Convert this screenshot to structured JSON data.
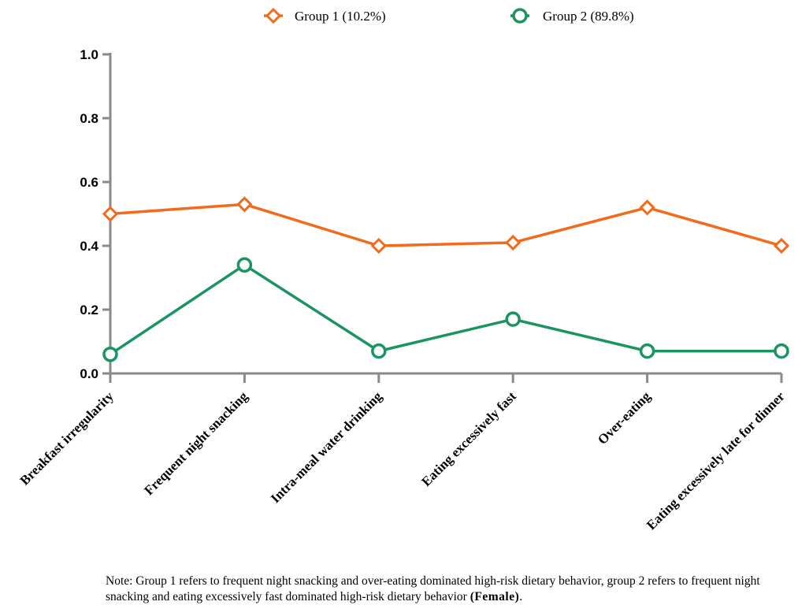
{
  "chart_data": {
    "type": "line",
    "categories": [
      "Breakfast irregularity",
      "Frequent night snacking",
      "Intra-meal water drinking",
      "Eating excessively fast",
      "Over-eating",
      "Eating excessively late for dinner"
    ],
    "series": [
      {
        "name": "Group 1  (10.2%)",
        "color": "#F26A1B",
        "marker": "diamond",
        "values": [
          0.5,
          0.53,
          0.4,
          0.41,
          0.52,
          0.4
        ]
      },
      {
        "name": "Group 2  (89.8%)",
        "color": "#1A9460",
        "marker": "circle",
        "values": [
          0.06,
          0.34,
          0.07,
          0.17,
          0.07,
          0.07
        ]
      }
    ],
    "yticks": [
      "0.0",
      "0.2",
      "0.4",
      "0.6",
      "0.8",
      "1.0"
    ],
    "ylim": [
      0,
      1.0
    ],
    "xlabel": "",
    "ylabel": "",
    "legend_position": "top"
  },
  "note": {
    "text": "Note: Group 1 refers to frequent night snacking and over-eating dominated high-risk dietary behavior, group 2 refers to frequent night snacking and eating excessively fast dominated high-risk dietary behavior",
    "bold": "(Female)",
    "end": "."
  }
}
